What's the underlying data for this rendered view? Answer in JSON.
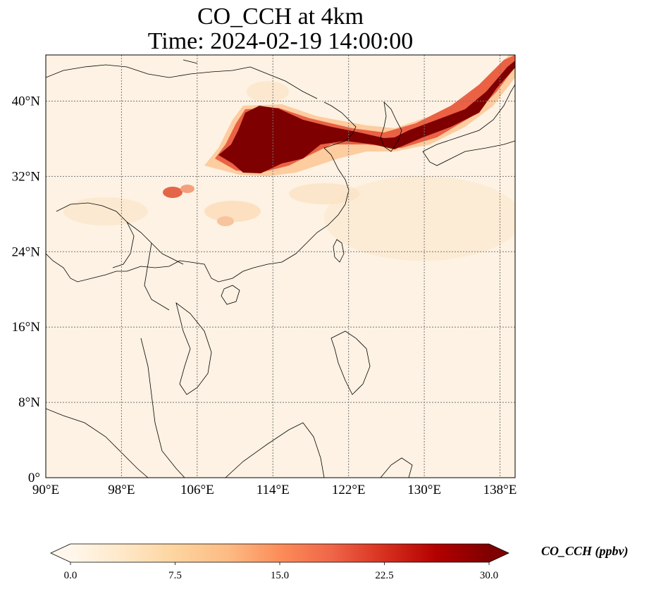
{
  "title": {
    "line1": "CO_CCH at 4km",
    "line2": "Time: 2024-02-19 14:00:00"
  },
  "map": {
    "projection": "PlateCarree",
    "lon_range": [
      90,
      140
    ],
    "lat_range": [
      0,
      45
    ],
    "gridlines": true,
    "lon_ticks": [
      {
        "value": 90,
        "label": "90°E"
      },
      {
        "value": 98,
        "label": "98°E"
      },
      {
        "value": 106,
        "label": "106°E"
      },
      {
        "value": 114,
        "label": "114°E"
      },
      {
        "value": 122,
        "label": "122°E"
      },
      {
        "value": 130,
        "label": "130°E"
      },
      {
        "value": 138,
        "label": "138°E"
      }
    ],
    "lat_ticks": [
      {
        "value": 40,
        "label": "40°N"
      },
      {
        "value": 32,
        "label": "32°N"
      },
      {
        "value": 24,
        "label": "24°N"
      },
      {
        "value": 16,
        "label": "16°N"
      },
      {
        "value": 8,
        "label": "8°N"
      },
      {
        "value": 0,
        "label": "0°"
      }
    ]
  },
  "colorbar": {
    "label": "CO_CCH (ppbv)",
    "colormap": "OrRd",
    "min": 0,
    "max": 30,
    "extend": "both",
    "ticks": [
      {
        "value": 0,
        "label": "0.0"
      },
      {
        "value": 7.5,
        "label": "7.5"
      },
      {
        "value": 15,
        "label": "15.0"
      },
      {
        "value": 22.5,
        "label": "22.5"
      },
      {
        "value": 30,
        "label": "30.0"
      }
    ],
    "stops": [
      "#fff7ec",
      "#fee8c8",
      "#fdd49e",
      "#fdbb84",
      "#fc8d59",
      "#ef6548",
      "#d7301f",
      "#b30000",
      "#7f0000"
    ]
  }
}
